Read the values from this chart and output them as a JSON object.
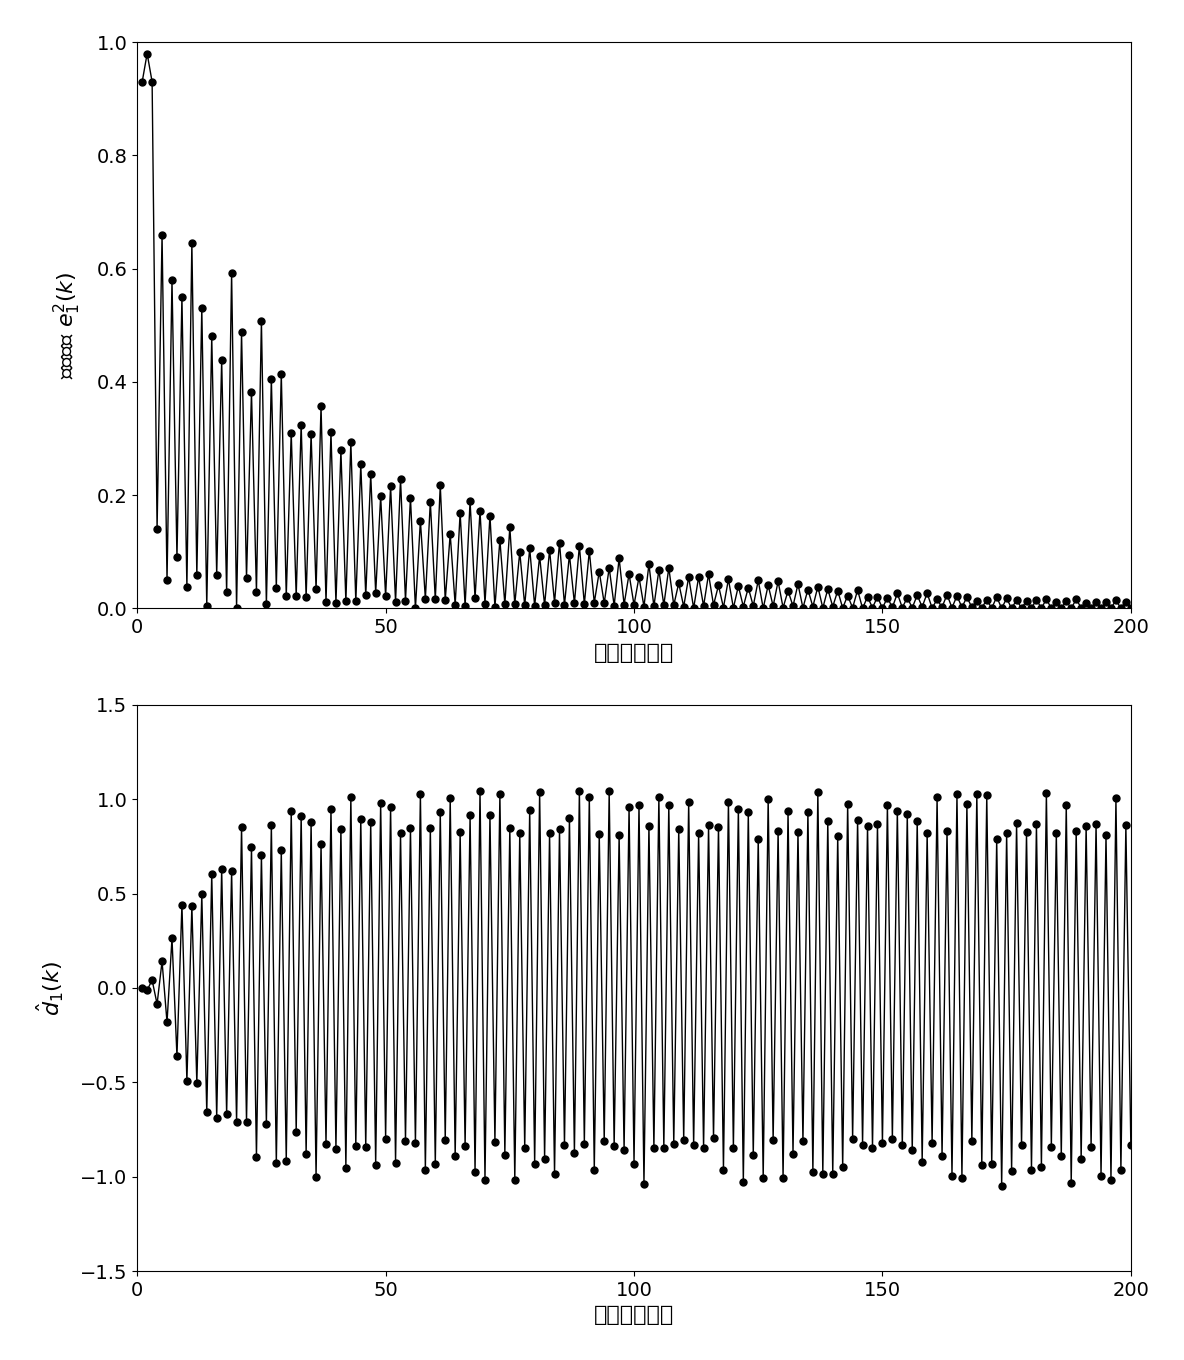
{
  "N": 200,
  "ylabel1": "瞬时误差 $e_1^2(k)$",
  "ylabel2": "$\\hat{d}_1(k)$",
  "xlabel": "训练迭代次数",
  "ylim1": [
    0,
    1
  ],
  "ylim2": [
    -1.5,
    1.5
  ],
  "xlim": [
    0,
    200
  ],
  "xticks": [
    0,
    50,
    100,
    150,
    200
  ],
  "yticks1": [
    0,
    0.2,
    0.4,
    0.6,
    0.8,
    1.0
  ],
  "yticks2": [
    -1.5,
    -1.0,
    -0.5,
    0,
    0.5,
    1.0,
    1.5
  ],
  "line_color": "#000000",
  "marker_color": "#000000",
  "background_color": "#ffffff",
  "marker_size": 5,
  "line_width": 1.0,
  "font_size_label": 16,
  "font_size_tick": 14
}
